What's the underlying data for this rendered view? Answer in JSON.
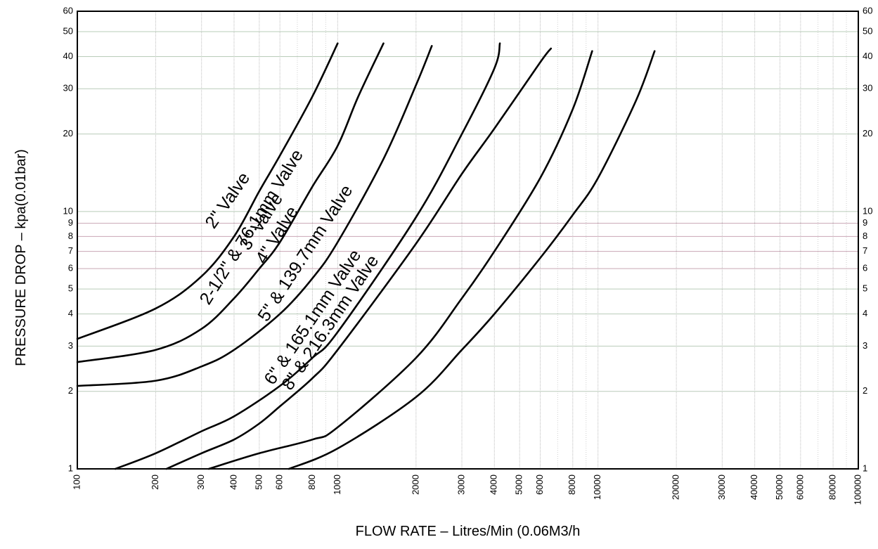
{
  "chart_data": {
    "type": "line",
    "xlabel": "FLOW RATE – Litres/Min (0.06M3/h",
    "ylabel": "PRESSURE DROP – kpa(0.01bar)",
    "x_scale": "log",
    "y_scale": "log",
    "xlim": [
      100,
      100000
    ],
    "ylim": [
      1,
      60
    ],
    "grid": true,
    "x_ticks": [
      100,
      200,
      300,
      400,
      500,
      600,
      800,
      1000,
      2000,
      3000,
      4000,
      5000,
      6000,
      8000,
      10000,
      20000,
      30000,
      40000,
      50000,
      60000,
      80000,
      100000
    ],
    "x_tick_labels": [
      "100",
      "200",
      "300",
      "400",
      "500",
      "600",
      "800",
      "1000",
      "2000",
      "3000",
      "4000",
      "5000",
      "6000",
      "8000",
      "10000",
      "20000",
      "30000",
      "40000",
      "50000",
      "60000",
      "80000",
      "100000"
    ],
    "y_ticks": [
      1,
      2,
      3,
      4,
      5,
      6,
      7,
      8,
      9,
      10,
      20,
      30,
      40,
      50,
      60
    ],
    "y_tick_labels": [
      "1",
      "2",
      "3",
      "4",
      "5",
      "6",
      "7",
      "8",
      "9",
      "10",
      "20",
      "30",
      "40",
      "50",
      "60"
    ],
    "series": [
      {
        "name": "2\" Valve",
        "points": [
          [
            100,
            3.2
          ],
          [
            200,
            4.2
          ],
          [
            300,
            5.6
          ],
          [
            400,
            8.0
          ],
          [
            500,
            12.0
          ],
          [
            600,
            16.5
          ],
          [
            800,
            28
          ],
          [
            1000,
            45
          ]
        ]
      },
      {
        "name": "2-1/2\" & 76.1mm Valve",
        "points": [
          [
            100,
            2.6
          ],
          [
            200,
            2.9
          ],
          [
            300,
            3.5
          ],
          [
            400,
            4.6
          ],
          [
            500,
            6.0
          ],
          [
            600,
            7.6
          ],
          [
            800,
            12.5
          ],
          [
            1000,
            18
          ],
          [
            1200,
            28
          ],
          [
            1500,
            45
          ]
        ]
      },
      {
        "name": "3\" Valve",
        "points": [
          [
            100,
            2.1
          ],
          [
            200,
            2.2
          ],
          [
            300,
            2.5
          ],
          [
            400,
            2.9
          ],
          [
            600,
            4.0
          ],
          [
            800,
            5.5
          ],
          [
            1000,
            7.6
          ],
          [
            1500,
            16
          ],
          [
            2000,
            31
          ],
          [
            2300,
            44
          ]
        ]
      },
      {
        "name": "4\" Valve",
        "points": [
          [
            140,
            1.0
          ],
          [
            200,
            1.15
          ],
          [
            300,
            1.4
          ],
          [
            400,
            1.6
          ],
          [
            600,
            2.1
          ],
          [
            800,
            2.7
          ],
          [
            1000,
            3.4
          ],
          [
            2000,
            9.5
          ],
          [
            3000,
            20
          ],
          [
            4000,
            36
          ],
          [
            4200,
            45
          ]
        ]
      },
      {
        "name": "5\" & 139.7mm Valve",
        "points": [
          [
            220,
            1.0
          ],
          [
            300,
            1.15
          ],
          [
            400,
            1.3
          ],
          [
            500,
            1.5
          ],
          [
            600,
            1.75
          ],
          [
            800,
            2.25
          ],
          [
            1000,
            2.9
          ],
          [
            2000,
            7.5
          ],
          [
            3000,
            14
          ],
          [
            4000,
            21
          ],
          [
            6000,
            38
          ],
          [
            6600,
            43
          ]
        ]
      },
      {
        "name": "6\" & 165.1mm Valve",
        "points": [
          [
            320,
            1.0
          ],
          [
            500,
            1.15
          ],
          [
            800,
            1.3
          ],
          [
            1000,
            1.45
          ],
          [
            2000,
            2.7
          ],
          [
            3000,
            4.6
          ],
          [
            4000,
            7.0
          ],
          [
            6000,
            13.5
          ],
          [
            8000,
            25
          ],
          [
            9500,
            42
          ]
        ]
      },
      {
        "name": "8\" & 216.3mm Valve",
        "points": [
          [
            650,
            1.0
          ],
          [
            1000,
            1.2
          ],
          [
            2000,
            1.9
          ],
          [
            3000,
            2.9
          ],
          [
            4000,
            4.0
          ],
          [
            6000,
            6.6
          ],
          [
            8000,
            9.7
          ],
          [
            10000,
            13.5
          ],
          [
            14000,
            27
          ],
          [
            16500,
            42
          ]
        ]
      }
    ]
  }
}
